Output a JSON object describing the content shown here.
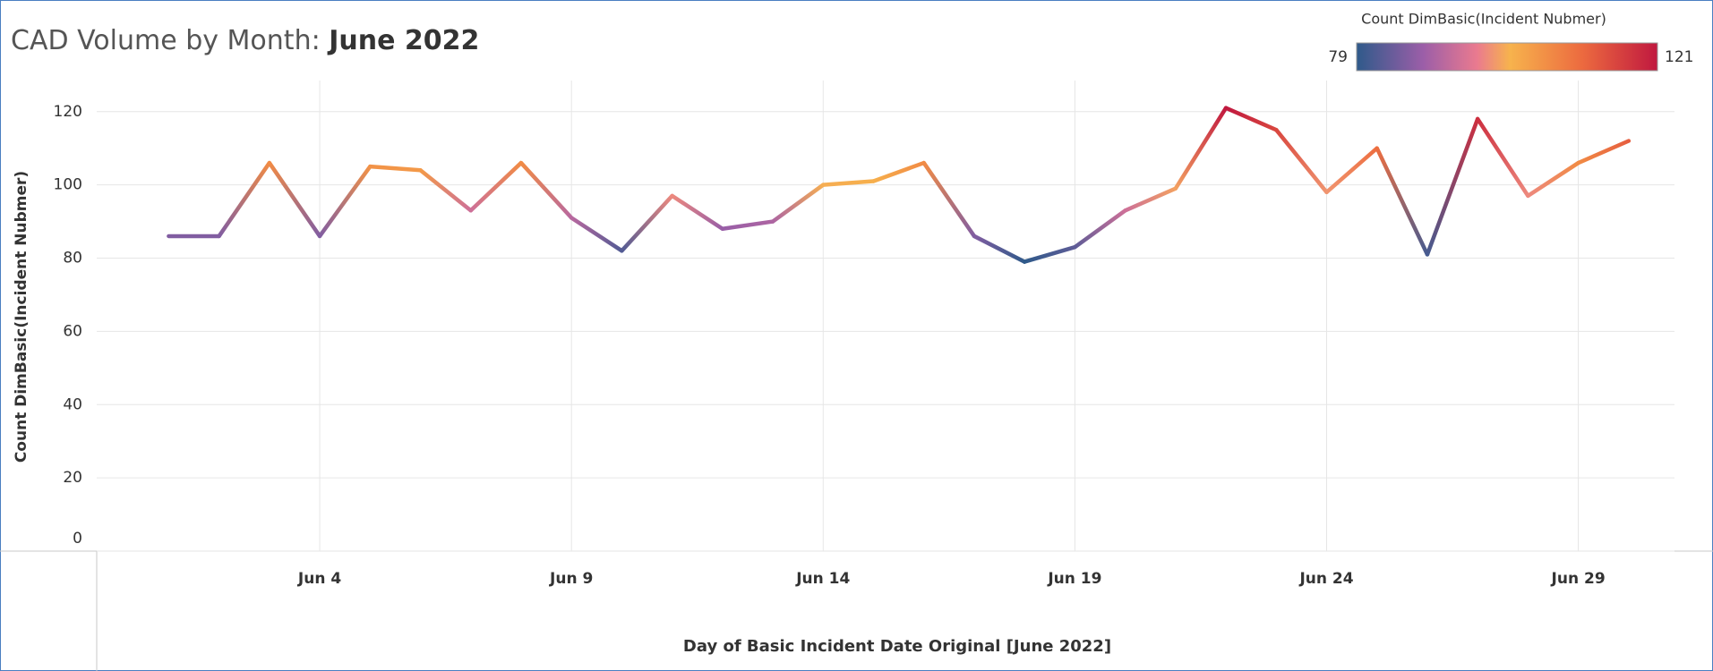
{
  "chart_data": {
    "type": "line",
    "title": "CAD Volume by Month:",
    "title_highlight": "June 2022",
    "x_label": "Day of Basic Incident Date Original [June 2022]",
    "y_label": "Count DimBasic(Incident Nubmer)",
    "x": [
      1,
      2,
      3,
      4,
      5,
      6,
      7,
      8,
      9,
      10,
      11,
      12,
      13,
      14,
      15,
      16,
      17,
      18,
      19,
      20,
      21,
      22,
      23,
      24,
      25,
      26,
      27,
      28,
      29,
      30
    ],
    "series": [
      {
        "name": "Count DimBasic(Incident Nubmer)",
        "values": [
          86,
          86,
          106,
          86,
          105,
          104,
          93,
          106,
          91,
          82,
          97,
          88,
          90,
          100,
          101,
          106,
          86,
          79,
          83,
          93,
          99,
          121,
          115,
          98,
          110,
          81,
          118,
          97,
          106,
          112
        ]
      }
    ],
    "xlim": [
      -0.43,
      30.91
    ],
    "xticks": [
      {
        "value": 4,
        "label": "Jun 4"
      },
      {
        "value": 9,
        "label": "Jun 9"
      },
      {
        "value": 14,
        "label": "Jun 14"
      },
      {
        "value": 19,
        "label": "Jun 19"
      },
      {
        "value": 24,
        "label": "Jun 24"
      },
      {
        "value": 29,
        "label": "Jun 29"
      }
    ],
    "ylim": [
      0,
      128
    ],
    "yticks": [
      0,
      20,
      40,
      60,
      80,
      100,
      120
    ],
    "grid": true,
    "color_legend": {
      "title": "Count DimBasic(Incident Nubmer)",
      "range": [
        79,
        121
      ],
      "stops": [
        [
          0,
          "#2f5a8a"
        ],
        [
          0.22,
          "#9b5ea8"
        ],
        [
          0.4,
          "#ea7a8f"
        ],
        [
          0.51,
          "#f7b34d"
        ],
        [
          0.75,
          "#ec6a3f"
        ],
        [
          1,
          "#c0183f"
        ]
      ]
    }
  }
}
